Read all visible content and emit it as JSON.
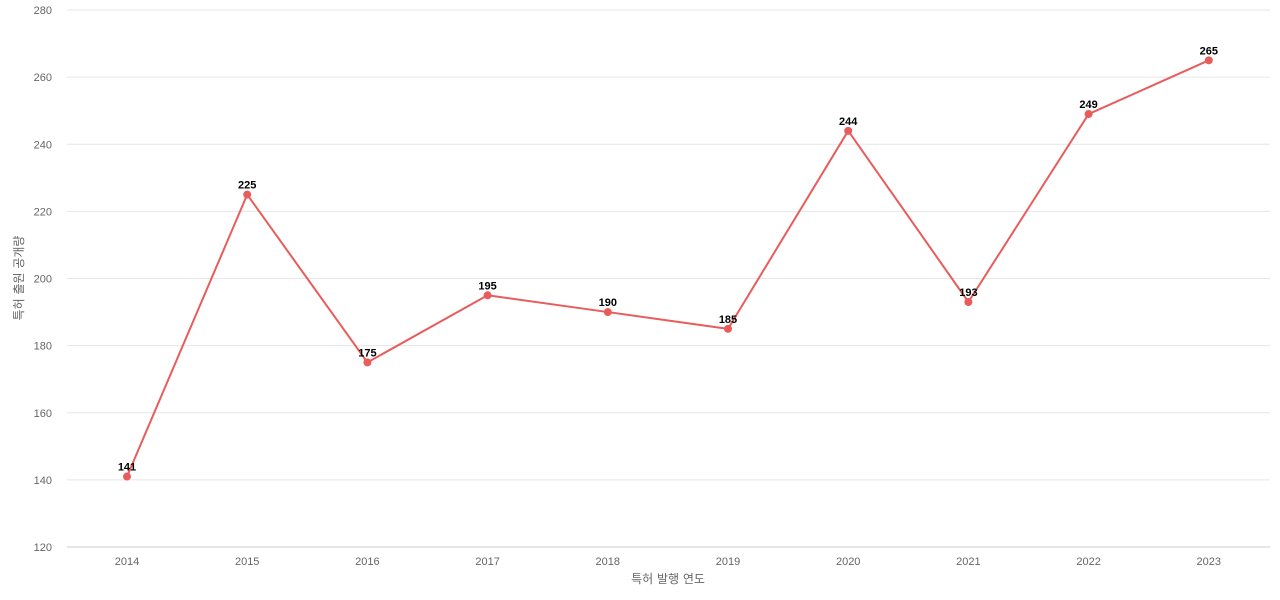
{
  "chart_data": {
    "type": "line",
    "title": "",
    "xlabel": "특허 발행 연도",
    "ylabel": "특허 출원 공개량",
    "categories": [
      "2014",
      "2015",
      "2016",
      "2017",
      "2018",
      "2019",
      "2020",
      "2021",
      "2022",
      "2023"
    ],
    "series": [
      {
        "values": [
          141,
          225,
          175,
          195,
          190,
          185,
          244,
          193,
          249,
          265
        ],
        "color": "#e85c5c"
      }
    ],
    "ylim": [
      120,
      280
    ],
    "yticks": [
      120,
      140,
      160,
      180,
      200,
      220,
      240,
      260,
      280
    ],
    "grid": true,
    "legend": "none",
    "data_labels": true
  }
}
